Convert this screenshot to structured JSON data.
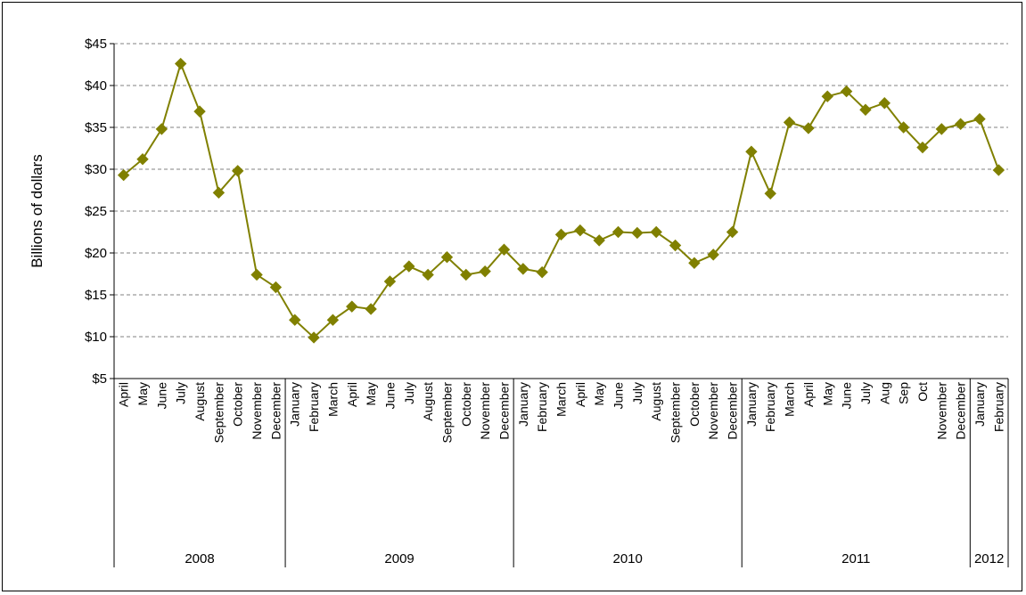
{
  "chart_data": {
    "type": "line",
    "ylabel": "Billions of dollars",
    "ylim": [
      5,
      45
    ],
    "yticks": [
      "$5",
      "$10",
      "$15",
      "$20",
      "$25",
      "$30",
      "$35",
      "$40",
      "$45"
    ],
    "ytick_values": [
      5,
      10,
      15,
      20,
      25,
      30,
      35,
      40,
      45
    ],
    "grid": "horizontal dashed",
    "color": "#808000",
    "marker": "diamond",
    "categories": [
      "April",
      "May",
      "June",
      "July",
      "August",
      "September",
      "October",
      "November",
      "December",
      "January",
      "February",
      "March",
      "April",
      "May",
      "June",
      "July",
      "August",
      "September",
      "October",
      "November",
      "December",
      "January",
      "February",
      "March",
      "April",
      "May",
      "June",
      "July",
      "August",
      "September",
      "October",
      "November",
      "December",
      "January",
      "February",
      "March",
      "April",
      "May",
      "June",
      "July",
      "Aug",
      "Sep",
      "Oct",
      "November",
      "December",
      "January",
      "February"
    ],
    "year_groups": [
      {
        "label": "2008",
        "count": 9
      },
      {
        "label": "2009",
        "count": 12
      },
      {
        "label": "2010",
        "count": 12
      },
      {
        "label": "2011",
        "count": 12
      },
      {
        "label": "2012",
        "count": 2
      }
    ],
    "values": [
      29.3,
      31.2,
      34.8,
      42.6,
      36.9,
      27.2,
      29.8,
      17.4,
      15.9,
      12.0,
      9.9,
      12.0,
      13.6,
      13.3,
      16.6,
      18.4,
      17.4,
      19.5,
      17.4,
      17.8,
      20.4,
      18.1,
      17.7,
      22.2,
      22.7,
      21.5,
      22.5,
      22.4,
      22.5,
      20.9,
      18.8,
      19.8,
      22.5,
      32.1,
      27.1,
      35.6,
      34.9,
      38.7,
      39.3,
      37.1,
      37.9,
      35.0,
      32.6,
      34.8,
      35.4,
      36.0,
      29.9
    ]
  }
}
